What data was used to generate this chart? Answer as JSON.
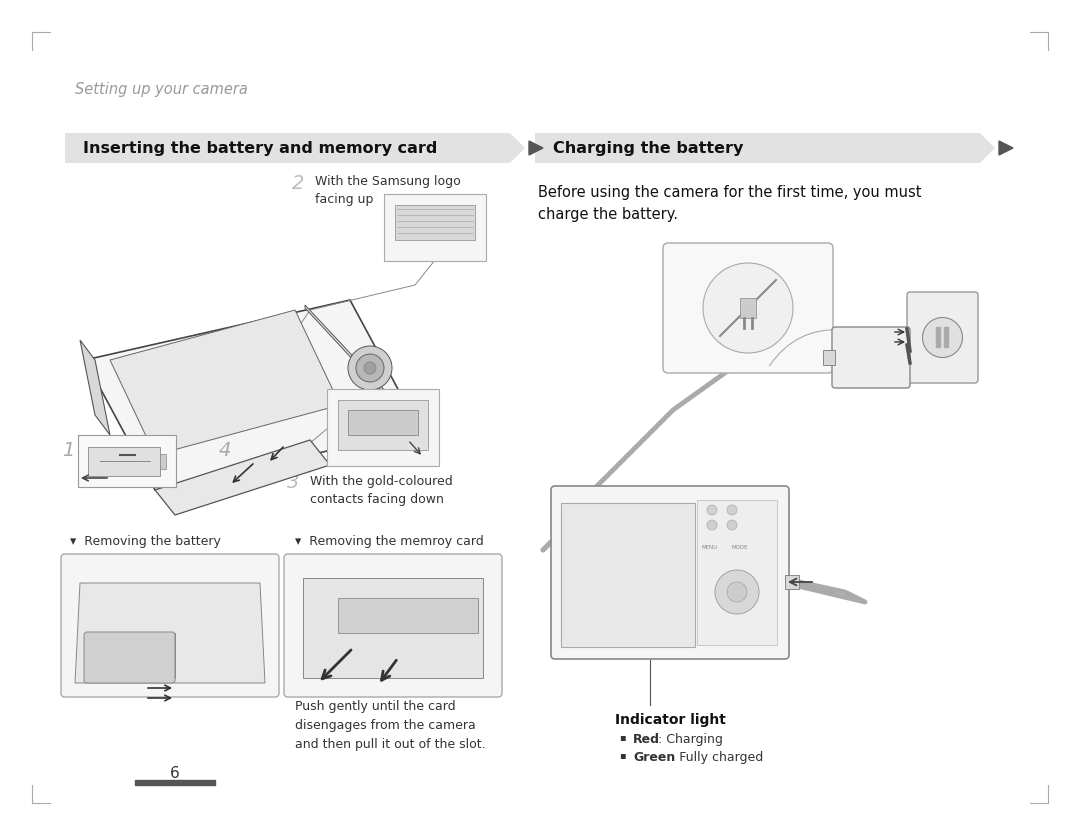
{
  "bg_color": "#ffffff",
  "heading_text": "Setting up your camera",
  "heading_color": "#999999",
  "heading_fontsize": 10.5,
  "left_banner_text": "Inserting the battery and memory card",
  "right_banner_text": "Charging the battery",
  "banner_bg": "#e2e2e2",
  "banner_text_color": "#111111",
  "banner_fontsize": 11.5,
  "body_text_right": "Before using the camera for the first time, you must\ncharge the battery.",
  "body_fontsize": 10,
  "step2_label": "2",
  "step2_text": "With the Samsung logo\nfacing up",
  "step3_label": "3",
  "step3_text": "With the gold-coloured\ncontacts facing down",
  "removing_battery_label": "▾  Removing the battery",
  "removing_card_label": "▾  Removing the memroy card",
  "push_text": "Push gently until the card\ndisengages from the camera\nand then pull it out of the slot.",
  "indicator_label": "Indicator light",
  "red_label": "Red",
  "red_desc": ": Charging",
  "green_label": "Green",
  "green_desc": ": Fully charged",
  "page_number": "6",
  "label_fontsize": 9,
  "small_fontsize": 8.5,
  "arrow_color": "#444444",
  "corner_color": "#aaaaaa"
}
